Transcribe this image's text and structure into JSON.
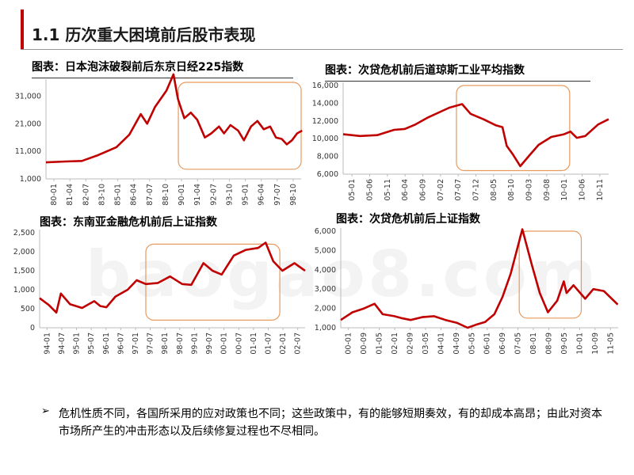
{
  "slide": {
    "title": "1.1 历次重大困境前后股市表现",
    "watermark": "baogao8.com",
    "bullet_mark": "➢",
    "bullet_text": "危机性质不同，各国所采用的应对政策也不同；这些政策中，有的能够短期奏效，有的却成本高昂；由此对资本市场所产生的冲击形态以及后续修复过程也不尽相同。"
  },
  "colors": {
    "series": "#c00000",
    "highlight": "#e69a5e",
    "axis": "#bbbbbb",
    "accent": "#c00000"
  },
  "chart_data": [
    {
      "type": "line",
      "title": "图表：日本泡沫破裂前后东京日经225指数",
      "y_ticks": [
        "31,000",
        "21,000",
        "11,000",
        "1,000"
      ],
      "ylim": [
        1000,
        36000
      ],
      "x_ticks": [
        "80-01",
        "81-04",
        "82-07",
        "83-10",
        "85-01",
        "86-04",
        "87-07",
        "88-10",
        "90-01",
        "91-04",
        "92-07",
        "93-10",
        "95-01",
        "96-04",
        "97-07",
        "98-10"
      ],
      "x_range": [
        "1980-01",
        "1999-12"
      ],
      "series": [
        {
          "points": [
            [
              1980.0,
              7000
            ],
            [
              1981.5,
              7300
            ],
            [
              1982.8,
              7500
            ],
            [
              1984.0,
              9500
            ],
            [
              1985.5,
              12500
            ],
            [
              1986.5,
              17000
            ],
            [
              1987.4,
              24500
            ],
            [
              1987.9,
              21000
            ],
            [
              1988.5,
              27000
            ],
            [
              1989.4,
              33000
            ],
            [
              1989.95,
              38900
            ],
            [
              1990.3,
              30000
            ],
            [
              1990.8,
              23000
            ],
            [
              1991.3,
              25000
            ],
            [
              1991.8,
              22500
            ],
            [
              1992.4,
              16000
            ],
            [
              1992.9,
              17500
            ],
            [
              1993.5,
              20000
            ],
            [
              1993.9,
              17500
            ],
            [
              1994.4,
              20500
            ],
            [
              1995.0,
              18500
            ],
            [
              1995.45,
              15000
            ],
            [
              1996.0,
              20000
            ],
            [
              1996.5,
              22000
            ],
            [
              1997.0,
              19000
            ],
            [
              1997.5,
              20000
            ],
            [
              1997.95,
              16000
            ],
            [
              1998.4,
              15500
            ],
            [
              1998.8,
              13500
            ],
            [
              1999.2,
              15000
            ],
            [
              1999.6,
              17500
            ],
            [
              1999.99,
              18500
            ]
          ]
        }
      ],
      "highlight_box": {
        "x_start": "1990-05",
        "x_end": "1999-12",
        "y_low": 4500,
        "y_high": 36000
      }
    },
    {
      "type": "line",
      "title": "图表：次贷危机前后道琼斯工业平均指数",
      "y_ticks": [
        "16,000",
        "14,000",
        "12,000",
        "10,000",
        "8,000",
        "6,000"
      ],
      "ylim": [
        6000,
        16000
      ],
      "x_ticks": [
        "05-01",
        "05-06",
        "05-11",
        "06-04",
        "06-09",
        "07-02",
        "07-07",
        "07-12",
        "08-05",
        "08-10",
        "09-03",
        "09-08",
        "10-01",
        "10-06",
        "10-11"
      ],
      "x_range": [
        "2005-01",
        "2011-04"
      ],
      "series": [
        {
          "points": [
            [
              2005.0,
              10500
            ],
            [
              2005.4,
              10300
            ],
            [
              2005.8,
              10400
            ],
            [
              2006.2,
              11000
            ],
            [
              2006.45,
              11100
            ],
            [
              2006.7,
              11600
            ],
            [
              2007.0,
              12400
            ],
            [
              2007.5,
              13500
            ],
            [
              2007.8,
              13900
            ],
            [
              2008.0,
              12800
            ],
            [
              2008.3,
              12200
            ],
            [
              2008.6,
              11500
            ],
            [
              2008.75,
              11300
            ],
            [
              2008.85,
              9200
            ],
            [
              2009.0,
              8200
            ],
            [
              2009.17,
              6900
            ],
            [
              2009.4,
              8200
            ],
            [
              2009.6,
              9300
            ],
            [
              2009.9,
              10200
            ],
            [
              2010.2,
              10500
            ],
            [
              2010.35,
              10800
            ],
            [
              2010.5,
              10100
            ],
            [
              2010.7,
              10300
            ],
            [
              2011.0,
              11600
            ],
            [
              2011.25,
              12200
            ]
          ]
        }
      ],
      "highlight_box": {
        "x_start": "2007-09",
        "x_end": "2010-05",
        "y_low": 6400,
        "y_high": 16000
      }
    },
    {
      "type": "line",
      "title": "图表：东南亚金融危机前后上证指数",
      "y_ticks": [
        "2,500",
        "2,000",
        "1,500",
        "1,000",
        "500",
        "0"
      ],
      "ylim": [
        0,
        2500
      ],
      "x_ticks": [
        "94-01",
        "94-07",
        "95-01",
        "95-07",
        "96-01",
        "96-07",
        "97-01",
        "97-07",
        "98-01",
        "98-07",
        "99-01",
        "99-07",
        "00-01",
        "00-07",
        "01-01",
        "01-07",
        "02-01",
        "02-07"
      ],
      "x_range": [
        "1994-01",
        "2002-10"
      ],
      "series": [
        {
          "points": [
            [
              1994.0,
              780
            ],
            [
              1994.3,
              600
            ],
            [
              1994.55,
              400
            ],
            [
              1994.7,
              900
            ],
            [
              1995.0,
              620
            ],
            [
              1995.4,
              520
            ],
            [
              1995.8,
              700
            ],
            [
              1996.0,
              570
            ],
            [
              1996.2,
              540
            ],
            [
              1996.5,
              820
            ],
            [
              1996.9,
              1000
            ],
            [
              1997.2,
              1250
            ],
            [
              1997.5,
              1150
            ],
            [
              1997.9,
              1180
            ],
            [
              1998.3,
              1350
            ],
            [
              1998.7,
              1150
            ],
            [
              1999.0,
              1130
            ],
            [
              1999.4,
              1700
            ],
            [
              1999.7,
              1500
            ],
            [
              2000.0,
              1400
            ],
            [
              2000.4,
              1900
            ],
            [
              2000.8,
              2050
            ],
            [
              2001.2,
              2100
            ],
            [
              2001.45,
              2240
            ],
            [
              2001.7,
              1750
            ],
            [
              2002.0,
              1500
            ],
            [
              2002.4,
              1700
            ],
            [
              2002.75,
              1500
            ]
          ]
        }
      ],
      "highlight_box": {
        "x_start": "1997-07",
        "x_end": "2001-12",
        "y_low": 200,
        "y_high": 2200
      }
    },
    {
      "type": "line",
      "title": "图表：次贷危机前后上证指数",
      "y_ticks": [
        "6,000",
        "5,000",
        "4,000",
        "3,000",
        "2,000",
        "1,000"
      ],
      "ylim": [
        1000,
        6000
      ],
      "x_ticks": [
        "00-01",
        "00-09",
        "01-05",
        "02-01",
        "02-09",
        "03-05",
        "04-01",
        "04-09",
        "05-05",
        "06-01",
        "06-09",
        "07-05",
        "08-01",
        "08-09",
        "09-05",
        "10-01",
        "10-09",
        "11-05"
      ],
      "x_range": [
        "2000-01",
        "2011-12"
      ],
      "series": [
        {
          "points": [
            [
              2000.0,
              1400
            ],
            [
              2000.5,
              1800
            ],
            [
              2001.0,
              2000
            ],
            [
              2001.45,
              2240
            ],
            [
              2001.8,
              1700
            ],
            [
              2002.3,
              1600
            ],
            [
              2002.6,
              1500
            ],
            [
              2003.0,
              1400
            ],
            [
              2003.5,
              1550
            ],
            [
              2004.0,
              1600
            ],
            [
              2004.5,
              1400
            ],
            [
              2005.0,
              1250
            ],
            [
              2005.45,
              1000
            ],
            [
              2005.8,
              1150
            ],
            [
              2006.2,
              1300
            ],
            [
              2006.6,
              1700
            ],
            [
              2006.95,
              2600
            ],
            [
              2007.3,
              3800
            ],
            [
              2007.8,
              6100
            ],
            [
              2008.2,
              4300
            ],
            [
              2008.55,
              2800
            ],
            [
              2008.9,
              1800
            ],
            [
              2009.3,
              2400
            ],
            [
              2009.58,
              3400
            ],
            [
              2009.7,
              2800
            ],
            [
              2010.0,
              3200
            ],
            [
              2010.5,
              2500
            ],
            [
              2010.85,
              3000
            ],
            [
              2011.3,
              2900
            ],
            [
              2011.9,
              2200
            ]
          ]
        }
      ],
      "highlight_box": {
        "x_start": "2007-09",
        "x_end": "2010-05",
        "y_low": 1500,
        "y_high": 6000
      }
    }
  ]
}
